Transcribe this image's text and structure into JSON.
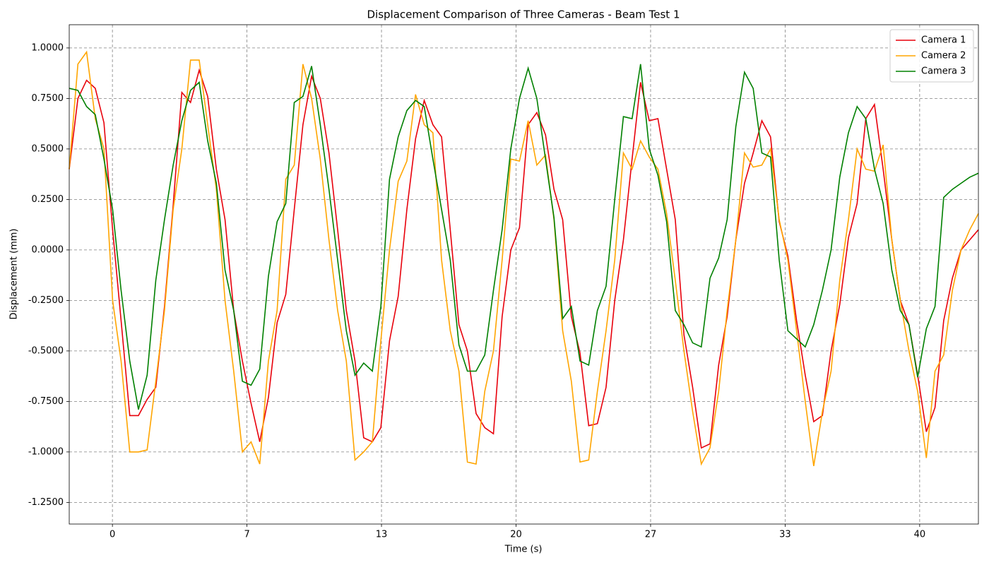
{
  "chart_data": {
    "type": "line",
    "title": "Displacement Comparison of Three Cameras - Beam Test 1",
    "xlabel": "Time (s)",
    "ylabel": "Displacement (mm)",
    "x": [
      -2.14,
      -1.71,
      -1.28,
      -0.85,
      -0.42,
      0.01,
      0.43,
      0.86,
      1.29,
      1.72,
      2.15,
      2.58,
      3.01,
      3.44,
      3.87,
      4.3,
      4.72,
      5.15,
      5.58,
      6.01,
      6.44,
      6.87,
      7.3,
      7.73,
      8.16,
      8.59,
      9.01,
      9.44,
      9.87,
      10.3,
      10.73,
      11.16,
      11.59,
      12.02,
      12.45,
      12.88,
      13.3,
      13.73,
      14.16,
      14.59,
      15.02,
      15.45,
      15.88,
      16.31,
      16.74,
      17.17,
      17.59,
      18.02,
      18.45,
      18.88,
      19.31,
      19.74,
      20.17,
      20.6,
      21.03,
      21.46,
      21.88,
      22.31,
      22.74,
      23.17,
      23.6,
      24.03,
      24.46,
      24.89,
      25.32,
      25.75,
      26.17,
      26.6,
      27.03,
      27.46,
      27.89,
      28.32,
      28.75,
      29.18,
      29.61,
      30.04,
      30.46,
      30.89,
      31.32,
      31.75,
      32.18,
      32.61,
      33.04,
      33.47,
      33.9,
      34.33,
      34.75,
      35.18,
      35.61,
      36.04,
      36.47,
      36.9,
      37.33,
      37.76,
      38.19,
      38.62,
      39.04,
      39.47,
      39.9,
      40.33,
      40.76,
      41.19,
      41.62,
      42.05,
      42.48,
      42.91
    ],
    "series": [
      {
        "name": "Camera 1",
        "color": "#e8000b",
        "values": [
          0.4,
          0.75,
          0.84,
          0.8,
          0.63,
          0.1,
          -0.35,
          -0.82,
          -0.82,
          -0.74,
          -0.68,
          -0.28,
          0.22,
          0.78,
          0.73,
          0.89,
          0.76,
          0.4,
          0.15,
          -0.3,
          -0.55,
          -0.76,
          -0.95,
          -0.73,
          -0.36,
          -0.22,
          0.2,
          0.62,
          0.86,
          0.75,
          0.48,
          0.1,
          -0.3,
          -0.55,
          -0.93,
          -0.95,
          -0.88,
          -0.45,
          -0.23,
          0.2,
          0.55,
          0.74,
          0.62,
          0.56,
          0.1,
          -0.37,
          -0.5,
          -0.81,
          -0.88,
          -0.91,
          -0.33,
          0.0,
          0.11,
          0.62,
          0.68,
          0.57,
          0.3,
          0.15,
          -0.33,
          -0.51,
          -0.87,
          -0.86,
          -0.68,
          -0.25,
          0.05,
          0.45,
          0.83,
          0.64,
          0.65,
          0.4,
          0.15,
          -0.42,
          -0.68,
          -0.98,
          -0.96,
          -0.57,
          -0.33,
          0.05,
          0.33,
          0.48,
          0.64,
          0.56,
          0.14,
          -0.03,
          -0.35,
          -0.62,
          -0.85,
          -0.82,
          -0.5,
          -0.27,
          0.06,
          0.23,
          0.65,
          0.72,
          0.4,
          0.05,
          -0.25,
          -0.37,
          -0.62,
          -0.9,
          -0.78,
          -0.35,
          -0.14,
          0.0,
          0.05,
          0.1
        ]
      },
      {
        "name": "Camera 2",
        "color": "#ffa500",
        "values": [
          0.4,
          0.92,
          0.98,
          0.65,
          0.5,
          -0.25,
          -0.55,
          -1.0,
          -1.0,
          -0.99,
          -0.65,
          -0.3,
          0.2,
          0.5,
          0.94,
          0.94,
          0.62,
          0.3,
          -0.25,
          -0.6,
          -1.0,
          -0.95,
          -1.06,
          -0.55,
          -0.3,
          0.35,
          0.42,
          0.92,
          0.75,
          0.45,
          0.05,
          -0.3,
          -0.55,
          -1.04,
          -1.0,
          -0.95,
          -0.45,
          0.0,
          0.34,
          0.44,
          0.77,
          0.62,
          0.58,
          -0.05,
          -0.4,
          -0.6,
          -1.05,
          -1.06,
          -0.7,
          -0.5,
          -0.05,
          0.45,
          0.44,
          0.64,
          0.42,
          0.47,
          0.15,
          -0.4,
          -0.65,
          -1.05,
          -1.04,
          -0.7,
          -0.4,
          -0.05,
          0.48,
          0.4,
          0.54,
          0.46,
          0.4,
          0.18,
          -0.15,
          -0.5,
          -0.8,
          -1.06,
          -0.98,
          -0.7,
          -0.3,
          0.05,
          0.48,
          0.41,
          0.42,
          0.5,
          0.15,
          -0.05,
          -0.4,
          -0.75,
          -1.07,
          -0.8,
          -0.6,
          -0.15,
          0.15,
          0.5,
          0.4,
          0.39,
          0.52,
          0.05,
          -0.25,
          -0.5,
          -0.7,
          -1.03,
          -0.6,
          -0.52,
          -0.2,
          0.0,
          0.1,
          0.18
        ]
      },
      {
        "name": "Camera 3",
        "color": "#008000",
        "values": [
          0.8,
          0.79,
          0.71,
          0.67,
          0.45,
          0.2,
          -0.2,
          -0.55,
          -0.79,
          -0.62,
          -0.15,
          0.15,
          0.42,
          0.64,
          0.79,
          0.83,
          0.54,
          0.33,
          -0.1,
          -0.3,
          -0.65,
          -0.67,
          -0.59,
          -0.13,
          0.14,
          0.23,
          0.73,
          0.76,
          0.91,
          0.62,
          0.3,
          -0.05,
          -0.4,
          -0.62,
          -0.56,
          -0.6,
          -0.28,
          0.35,
          0.56,
          0.69,
          0.74,
          0.71,
          0.45,
          0.2,
          -0.05,
          -0.47,
          -0.6,
          -0.6,
          -0.52,
          -0.2,
          0.1,
          0.5,
          0.75,
          0.9,
          0.75,
          0.45,
          0.16,
          -0.34,
          -0.28,
          -0.55,
          -0.57,
          -0.3,
          -0.18,
          0.25,
          0.66,
          0.65,
          0.92,
          0.5,
          0.37,
          0.14,
          -0.3,
          -0.37,
          -0.46,
          -0.48,
          -0.14,
          -0.04,
          0.15,
          0.61,
          0.88,
          0.8,
          0.48,
          0.46,
          -0.05,
          -0.4,
          -0.44,
          -0.48,
          -0.37,
          -0.2,
          0.0,
          0.36,
          0.58,
          0.71,
          0.65,
          0.4,
          0.23,
          -0.1,
          -0.3,
          -0.37,
          -0.63,
          -0.39,
          -0.28,
          0.26,
          0.3,
          0.33,
          0.36,
          0.38
        ]
      }
    ],
    "xlim": [
      -2.14,
      42.91
    ],
    "xticks": [
      0,
      {
        "value": 6.667,
        "label": "7"
      },
      {
        "value": 13.333,
        "label": "13"
      },
      20,
      {
        "value": 26.667,
        "label": "27"
      },
      {
        "value": 33.333,
        "label": "33"
      },
      40
    ],
    "ylim": [
      -1.357,
      1.115
    ],
    "yticks": [
      {
        "value": 1,
        "label": "1.0000"
      },
      {
        "value": 0.75,
        "label": "0.7500"
      },
      {
        "value": 0.5,
        "label": "0.5000"
      },
      {
        "value": 0.25,
        "label": "0.2500"
      },
      {
        "value": 0,
        "label": "0.0000"
      },
      {
        "value": -0.25,
        "label": "-0.2500"
      },
      {
        "value": -0.5,
        "label": "-0.5000"
      },
      {
        "value": -0.75,
        "label": "-0.7500"
      },
      {
        "value": -1,
        "label": "-1.0000"
      },
      {
        "value": -1.25,
        "label": "-1.2500"
      }
    ],
    "grid": true,
    "legend": "upper right"
  }
}
